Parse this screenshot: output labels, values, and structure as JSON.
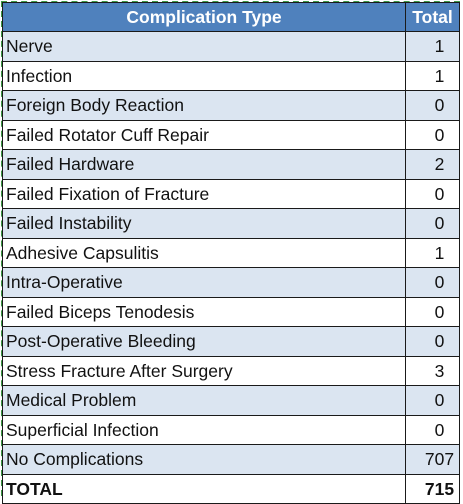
{
  "table": {
    "headers": {
      "type": "Complication Type",
      "total": "Total"
    },
    "rows": [
      {
        "type": "Nerve",
        "total": "1"
      },
      {
        "type": "Infection",
        "total": "1"
      },
      {
        "type": "Foreign Body Reaction",
        "total": "0"
      },
      {
        "type": "Failed Rotator Cuff Repair",
        "total": "0"
      },
      {
        "type": "Failed Hardware",
        "total": "2"
      },
      {
        "type": "Failed Fixation of Fracture",
        "total": "0"
      },
      {
        "type": "Failed Instability",
        "total": "0"
      },
      {
        "type": "Adhesive Capsulitis",
        "total": "1"
      },
      {
        "type": "Intra-Operative",
        "total": "0"
      },
      {
        "type": "Failed Biceps Tenodesis",
        "total": "0"
      },
      {
        "type": "Post-Operative Bleeding",
        "total": "0"
      },
      {
        "type": "Stress Fracture After Surgery",
        "total": "3"
      },
      {
        "type": "Medical Problem",
        "total": "0"
      },
      {
        "type": "Superficial Infection",
        "total": "0"
      },
      {
        "type": "No Complications",
        "total": "707"
      }
    ],
    "footer": {
      "label": "TOTAL",
      "total": "715"
    }
  },
  "colors": {
    "header_bg": "#4f81bd",
    "band_bg": "#dbe5f1",
    "frame_dash": "#3f9a47"
  }
}
